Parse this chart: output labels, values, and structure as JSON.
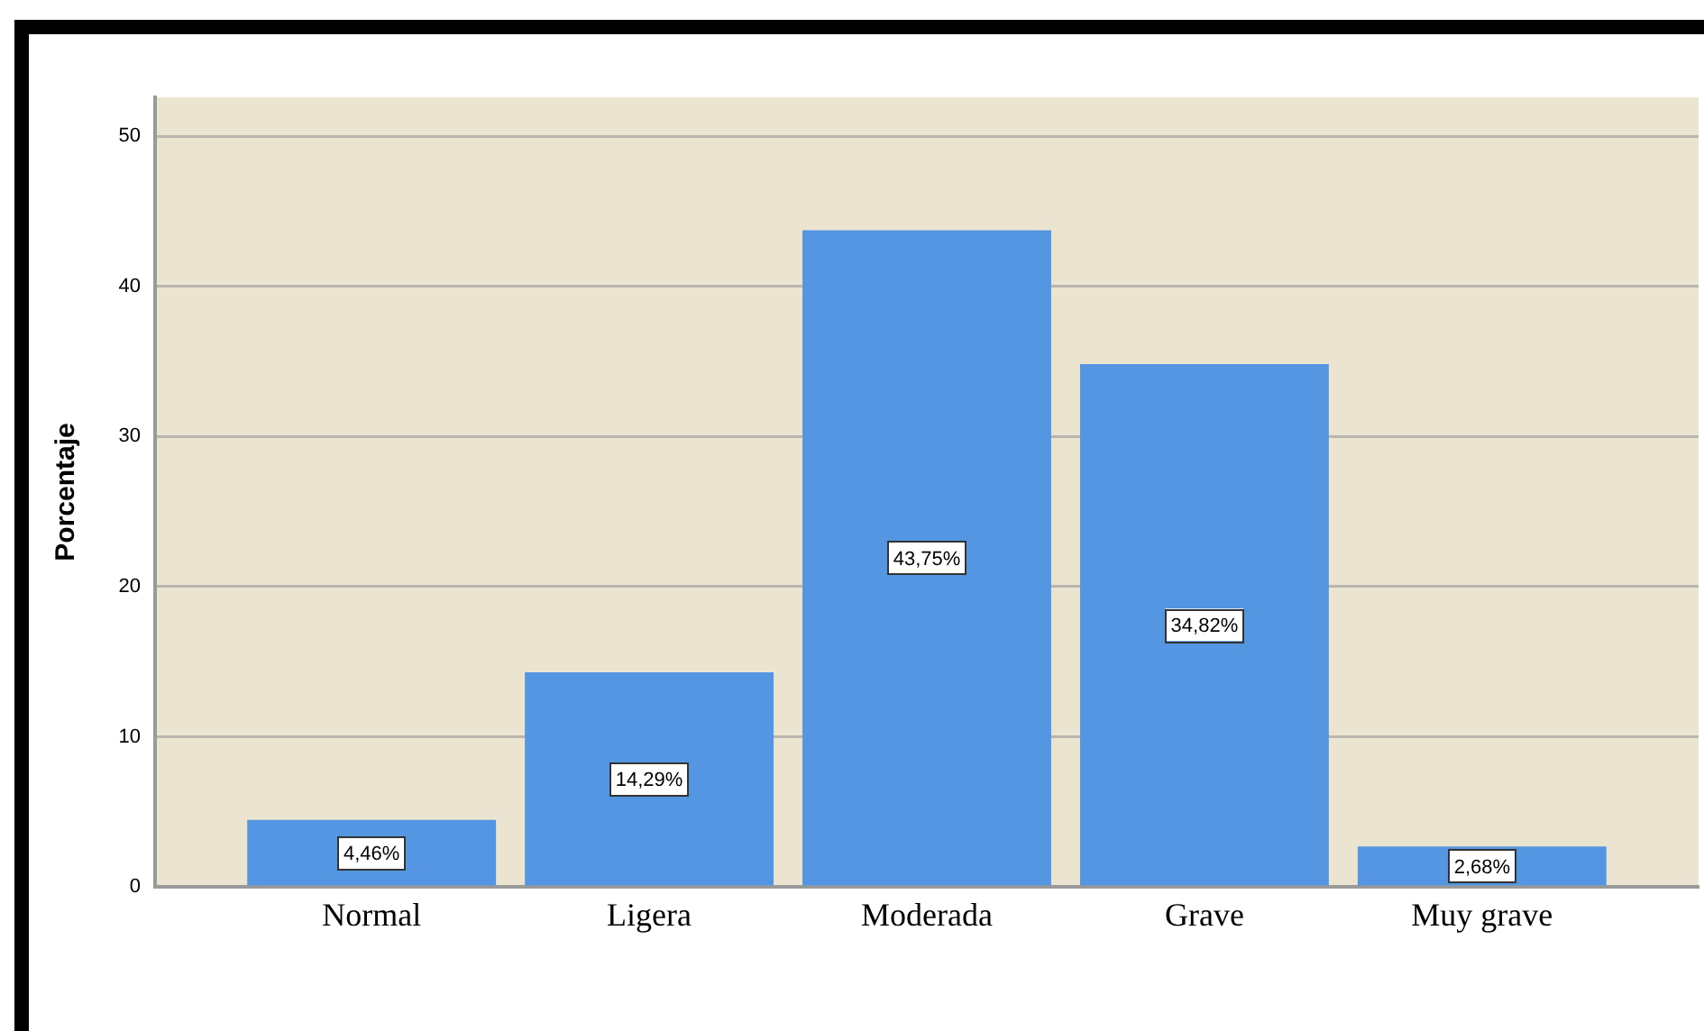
{
  "chart_data": {
    "type": "bar",
    "ylabel": "Porcentaje",
    "categories": [
      "Normal",
      "Ligera",
      "Moderada",
      "Grave",
      "Muy grave"
    ],
    "values": [
      4.46,
      14.29,
      43.75,
      34.82,
      2.68
    ],
    "value_labels": [
      "4,46%",
      "14,29%",
      "43,75%",
      "34,82%",
      "2,68%"
    ],
    "color": "#5596e3",
    "ylim": [
      0,
      52.6
    ],
    "yticks": [
      0,
      10,
      20,
      30,
      40,
      50
    ],
    "grid": "y"
  }
}
